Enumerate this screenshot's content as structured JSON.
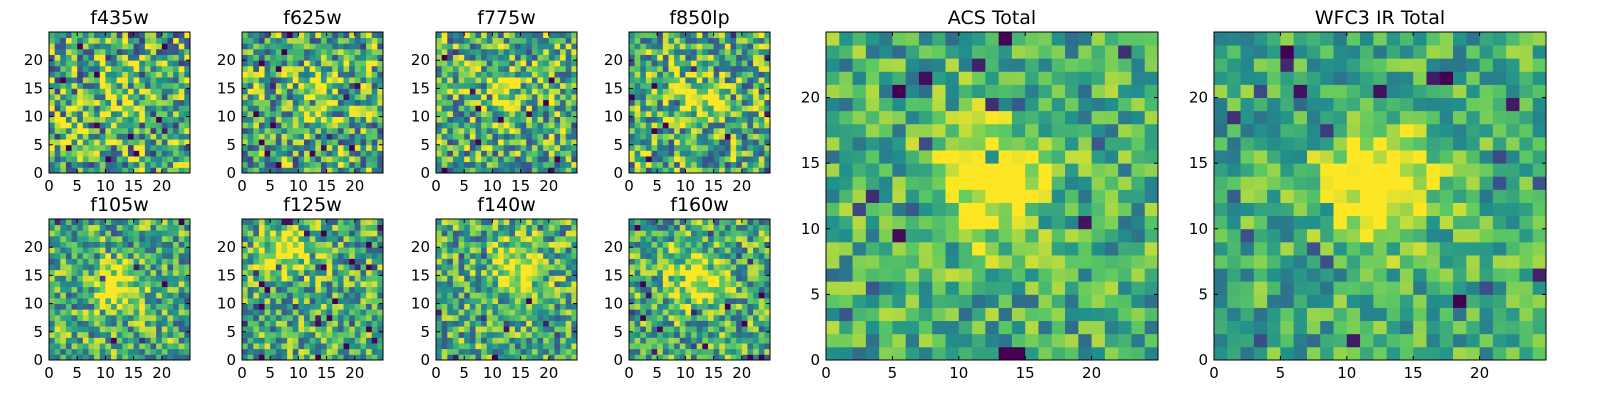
{
  "figure": {
    "background": "#ffffff",
    "colormap": "viridis",
    "colormap_stops": [
      "#440154",
      "#3b528b",
      "#21918c",
      "#5ec962",
      "#fde725"
    ]
  },
  "chart_data": [
    {
      "type": "heatmap",
      "title": "f435w",
      "xlabel": "",
      "ylabel": "",
      "xlim": [
        0,
        25
      ],
      "ylim": [
        0,
        25
      ],
      "xticks": [
        0,
        5,
        10,
        15,
        20
      ],
      "yticks": [
        0,
        5,
        10,
        15,
        20
      ],
      "grid": false,
      "shape": [
        25,
        25
      ],
      "values_description_seed": 11,
      "peak_center": [
        12,
        13
      ],
      "peak_strength": 0.15,
      "noise_level": 0.9
    },
    {
      "type": "heatmap",
      "title": "f625w",
      "xlabel": "",
      "ylabel": "",
      "xlim": [
        0,
        25
      ],
      "ylim": [
        0,
        25
      ],
      "xticks": [
        0,
        5,
        10,
        15,
        20
      ],
      "yticks": [
        0,
        5,
        10,
        15,
        20
      ],
      "grid": false,
      "shape": [
        25,
        25
      ],
      "values_description_seed": 23,
      "peak_center": [
        12,
        13
      ],
      "peak_strength": 0.25,
      "noise_level": 0.85
    },
    {
      "type": "heatmap",
      "title": "f775w",
      "xlabel": "",
      "ylabel": "",
      "xlim": [
        0,
        25
      ],
      "ylim": [
        0,
        25
      ],
      "xticks": [
        0,
        5,
        10,
        15,
        20
      ],
      "yticks": [
        0,
        5,
        10,
        15,
        20
      ],
      "grid": false,
      "shape": [
        25,
        25
      ],
      "values_description_seed": 37,
      "peak_center": [
        11,
        14
      ],
      "peak_strength": 0.35,
      "noise_level": 0.8
    },
    {
      "type": "heatmap",
      "title": "f850lp",
      "xlabel": "",
      "ylabel": "",
      "xlim": [
        0,
        25
      ],
      "ylim": [
        0,
        25
      ],
      "xticks": [
        0,
        5,
        10,
        15,
        20
      ],
      "yticks": [
        0,
        5,
        10,
        15,
        20
      ],
      "grid": false,
      "shape": [
        25,
        25
      ],
      "values_description_seed": 41,
      "peak_center": [
        12,
        13
      ],
      "peak_strength": 0.35,
      "noise_level": 0.8
    },
    {
      "type": "heatmap",
      "title": "f105w",
      "xlabel": "",
      "ylabel": "",
      "xlim": [
        0,
        25
      ],
      "ylim": [
        0,
        25
      ],
      "xticks": [
        0,
        5,
        10,
        15,
        20
      ],
      "yticks": [
        0,
        5,
        10,
        15,
        20
      ],
      "grid": false,
      "shape": [
        25,
        25
      ],
      "values_description_seed": 53,
      "peak_center": [
        12,
        12
      ],
      "peak_strength": 0.45,
      "noise_level": 0.7
    },
    {
      "type": "heatmap",
      "title": "f125w",
      "xlabel": "",
      "ylabel": "",
      "xlim": [
        0,
        25
      ],
      "ylim": [
        0,
        25
      ],
      "xticks": [
        0,
        5,
        10,
        15,
        20
      ],
      "yticks": [
        0,
        5,
        10,
        15,
        20
      ],
      "grid": false,
      "shape": [
        25,
        25
      ],
      "values_description_seed": 67,
      "peak_center": [
        7,
        19
      ],
      "peak_strength": 0.45,
      "noise_level": 0.7
    },
    {
      "type": "heatmap",
      "title": "f140w",
      "xlabel": "",
      "ylabel": "",
      "xlim": [
        0,
        25
      ],
      "ylim": [
        0,
        25
      ],
      "xticks": [
        0,
        5,
        10,
        15,
        20
      ],
      "yticks": [
        0,
        5,
        10,
        15,
        20
      ],
      "grid": false,
      "shape": [
        25,
        25
      ],
      "values_description_seed": 79,
      "peak_center": [
        14,
        16
      ],
      "peak_strength": 0.45,
      "noise_level": 0.7
    },
    {
      "type": "heatmap",
      "title": "f160w",
      "xlabel": "",
      "ylabel": "",
      "xlim": [
        0,
        25
      ],
      "ylim": [
        0,
        25
      ],
      "xticks": [
        0,
        5,
        10,
        15,
        20
      ],
      "yticks": [
        0,
        5,
        10,
        15,
        20
      ],
      "grid": false,
      "shape": [
        25,
        25
      ],
      "values_description_seed": 83,
      "peak_center": [
        11,
        14
      ],
      "peak_strength": 0.45,
      "noise_level": 0.7
    },
    {
      "type": "heatmap",
      "title": "ACS Total",
      "xlabel": "",
      "ylabel": "",
      "xlim": [
        0,
        25
      ],
      "ylim": [
        0,
        25
      ],
      "xticks": [
        0,
        5,
        10,
        15,
        20
      ],
      "yticks": [
        0,
        5,
        10,
        15,
        20
      ],
      "grid": false,
      "shape": [
        25,
        25
      ],
      "values_description_seed": 97,
      "peak_center": [
        12,
        13
      ],
      "peak_strength": 0.55,
      "noise_level": 0.55
    },
    {
      "type": "heatmap",
      "title": "WFC3 IR Total",
      "xlabel": "",
      "ylabel": "",
      "xlim": [
        0,
        25
      ],
      "ylim": [
        0,
        25
      ],
      "xticks": [
        0,
        5,
        10,
        15,
        20
      ],
      "yticks": [
        0,
        5,
        10,
        15,
        20
      ],
      "grid": false,
      "shape": [
        25,
        25
      ],
      "values_description_seed": 109,
      "peak_center": [
        12,
        13
      ],
      "peak_strength": 0.6,
      "noise_level": 0.5
    }
  ]
}
